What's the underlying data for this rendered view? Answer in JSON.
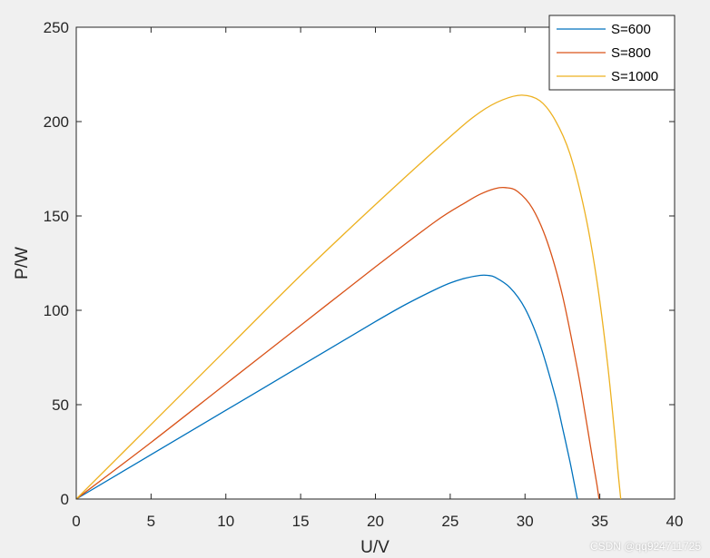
{
  "chart_data": {
    "type": "line",
    "title": "",
    "xlabel": "U/V",
    "ylabel": "P/W",
    "xlim": [
      0,
      40
    ],
    "ylim": [
      0,
      250
    ],
    "xticks": [
      0,
      5,
      10,
      15,
      20,
      25,
      30,
      35,
      40
    ],
    "yticks": [
      0,
      50,
      100,
      150,
      200,
      250
    ],
    "grid": false,
    "legend_location": "top-right",
    "series": [
      {
        "name": "S=600",
        "color": "#0072BD",
        "x": [
          0,
          5,
          10,
          15,
          20,
          22,
          24,
          25,
          26,
          27,
          27.5,
          28,
          29,
          30,
          31,
          32,
          32.5,
          33,
          33.3,
          33.5
        ],
        "y": [
          0,
          23.5,
          47,
          70.5,
          94,
          103,
          111,
          114.5,
          117,
          118.5,
          118.5,
          117.5,
          112,
          101,
          82,
          55,
          38,
          20,
          8,
          0
        ]
      },
      {
        "name": "S=800",
        "color": "#D95319",
        "x": [
          0,
          5,
          10,
          15,
          20,
          24,
          26,
          27,
          28,
          28.7,
          29.5,
          30.5,
          31.5,
          32.5,
          33.5,
          34,
          34.5,
          34.8,
          34.95
        ],
        "y": [
          0,
          30,
          61,
          92,
          123,
          147,
          157,
          161.5,
          164.5,
          165,
          163,
          154,
          136,
          108,
          69,
          46,
          22,
          8,
          0
        ]
      },
      {
        "name": "S=1000",
        "color": "#EDB120",
        "x": [
          0,
          5,
          10,
          15,
          20,
          25,
          27,
          28.5,
          29.8,
          31,
          32,
          33,
          34,
          34.8,
          35.5,
          36,
          36.2,
          36.4
        ],
        "y": [
          0,
          39.5,
          79,
          118.5,
          156,
          192,
          205,
          211.5,
          214,
          211,
          201,
          183,
          152,
          116,
          73,
          34,
          16,
          0
        ]
      }
    ]
  },
  "watermark": "CSDN @qq924711725"
}
